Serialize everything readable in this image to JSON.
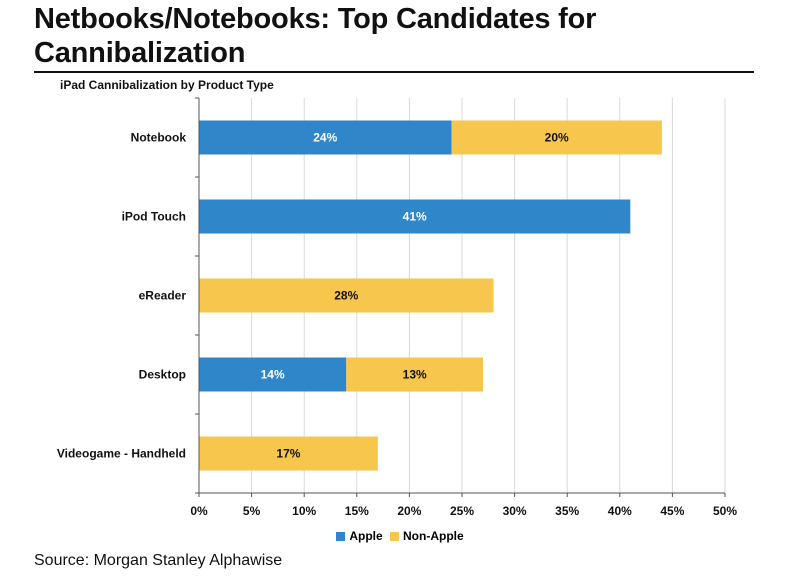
{
  "title": "Netbooks/Notebooks: Top Candidates for Cannibalization",
  "subtitle": "iPad Cannibalization by Product Type",
  "source": "Source: Morgan Stanley Alphawise",
  "colors": {
    "apple": "#2f86c8",
    "non_apple": "#f6c64d",
    "grid": "#d9d9d9",
    "axis": "#555555"
  },
  "chart_data": {
    "type": "bar",
    "orientation": "horizontal",
    "stacked": true,
    "title": "iPad Cannibalization by Product Type",
    "categories": [
      "Notebook",
      "iPod Touch",
      "eReader",
      "Desktop",
      "Videogame - Handheld"
    ],
    "series": [
      {
        "name": "Apple",
        "values": [
          24,
          41,
          0,
          14,
          0
        ],
        "labels": [
          "24%",
          "41%",
          "",
          "14%",
          ""
        ]
      },
      {
        "name": "Non-Apple",
        "values": [
          20,
          0,
          28,
          13,
          17
        ],
        "labels": [
          "20%",
          "",
          "28%",
          "13%",
          "17%"
        ]
      }
    ],
    "xlim": [
      0,
      50
    ],
    "xticks": [
      0,
      5,
      10,
      15,
      20,
      25,
      30,
      35,
      40,
      45,
      50
    ],
    "xtick_labels": [
      "0%",
      "5%",
      "10%",
      "15%",
      "20%",
      "25%",
      "30%",
      "35%",
      "40%",
      "45%",
      "50%"
    ],
    "xlabel": "",
    "ylabel": "",
    "grid": true,
    "legend_position": "bottom"
  }
}
